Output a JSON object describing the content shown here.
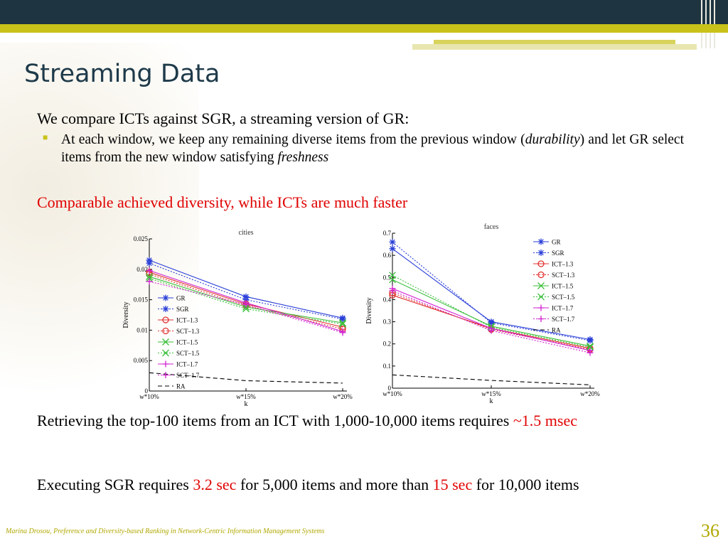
{
  "slide": {
    "title": "Streaming Data",
    "intro": "We compare ICTs against SGR, a streaming version of GR:",
    "bullet_part1": "At each window, we keep any remaining diverse items from the previous window (",
    "bullet_em1": "durability",
    "bullet_part2": ") and let GR select items from the new window satisfying ",
    "bullet_em2": "freshness",
    "highlight": "Comparable achieved diversity, while ICTs are much faster",
    "retrieve_text": "Retrieving the top-100 items from an ICT with 1,000-10,000 items requires ",
    "retrieve_value": "~1.5 msec",
    "exec_text1": "Executing SGR requires ",
    "exec_value1": "3.2 sec",
    "exec_text2": " for 5,000 items and more than ",
    "exec_value2": "15 sec",
    "exec_text3": " for 10,000 items",
    "footer": "Marina Drosou, Preference and Diversity-based Ranking in Network-Centric Information Management Systems",
    "page_number": "36"
  },
  "colors": {
    "blue": "#2a3fd8",
    "red": "#e03030",
    "green": "#3cbf3c",
    "magenta": "#d020d0",
    "black": "#000000",
    "accent_red": "#e00000"
  },
  "chart_data": [
    {
      "type": "line",
      "title": "cities",
      "xlabel": "k",
      "ylabel": "Diversity",
      "categories": [
        "w*10%",
        "w*15%",
        "w*20%"
      ],
      "ylim": [
        0,
        0.025
      ],
      "yticks": [
        "0",
        "0.005",
        "0.01",
        "0.015",
        "0.02",
        "0.025"
      ],
      "legend_position": "bottom-left",
      "series": [
        {
          "name": "GR",
          "values": [
            0.0215,
            0.0155,
            0.012
          ],
          "color": "#2a3fd8",
          "dash": "solid",
          "marker": "star"
        },
        {
          "name": "SGR",
          "values": [
            0.021,
            0.015,
            0.0118
          ],
          "color": "#2a3fd8",
          "dash": "dotted",
          "marker": "star"
        },
        {
          "name": "ICT–1.3",
          "values": [
            0.0195,
            0.0143,
            0.0105
          ],
          "color": "#e03030",
          "dash": "solid",
          "marker": "circle"
        },
        {
          "name": "SCT–1.3",
          "values": [
            0.0192,
            0.014,
            0.0102
          ],
          "color": "#e03030",
          "dash": "dotted",
          "marker": "circle"
        },
        {
          "name": "ICT–1.5",
          "values": [
            0.0188,
            0.0138,
            0.0112
          ],
          "color": "#3cbf3c",
          "dash": "solid",
          "marker": "x"
        },
        {
          "name": "SCT–1.5",
          "values": [
            0.0185,
            0.0135,
            0.011
          ],
          "color": "#3cbf3c",
          "dash": "dotted",
          "marker": "x"
        },
        {
          "name": "ICT–1.7",
          "values": [
            0.0198,
            0.0145,
            0.0098
          ],
          "color": "#d020d0",
          "dash": "solid",
          "marker": "plus"
        },
        {
          "name": "SCT–1.7",
          "values": [
            0.018,
            0.0142,
            0.0096
          ],
          "color": "#d020d0",
          "dash": "dotted",
          "marker": "plus"
        },
        {
          "name": "RA",
          "values": [
            0.003,
            0.0017,
            0.0013
          ],
          "color": "#000000",
          "dash": "dashed",
          "marker": "none"
        }
      ]
    },
    {
      "type": "line",
      "title": "faces",
      "xlabel": "k",
      "ylabel": "Diversity",
      "categories": [
        "w*10%",
        "w*15%",
        "w*20%"
      ],
      "ylim": [
        0,
        0.7
      ],
      "yticks": [
        "0",
        "0.1",
        "0.2",
        "0.3",
        "0.4",
        "0.5",
        "0.6",
        "0.7"
      ],
      "legend_position": "top-right",
      "series": [
        {
          "name": "GR",
          "values": [
            0.63,
            0.3,
            0.22
          ],
          "color": "#2a3fd8",
          "dash": "solid",
          "marker": "star"
        },
        {
          "name": "SGR",
          "values": [
            0.66,
            0.295,
            0.215
          ],
          "color": "#2a3fd8",
          "dash": "dotted",
          "marker": "star"
        },
        {
          "name": "ICT–1.3",
          "values": [
            0.42,
            0.27,
            0.18
          ],
          "color": "#e03030",
          "dash": "solid",
          "marker": "circle"
        },
        {
          "name": "SCT–1.3",
          "values": [
            0.43,
            0.265,
            0.175
          ],
          "color": "#e03030",
          "dash": "dotted",
          "marker": "circle"
        },
        {
          "name": "ICT–1.5",
          "values": [
            0.49,
            0.28,
            0.19
          ],
          "color": "#3cbf3c",
          "dash": "solid",
          "marker": "x"
        },
        {
          "name": "SCT–1.5",
          "values": [
            0.51,
            0.275,
            0.185
          ],
          "color": "#3cbf3c",
          "dash": "dotted",
          "marker": "x"
        },
        {
          "name": "ICT–1.7",
          "values": [
            0.45,
            0.27,
            0.17
          ],
          "color": "#d020d0",
          "dash": "solid",
          "marker": "plus"
        },
        {
          "name": "SCT–1.7",
          "values": [
            0.44,
            0.26,
            0.16
          ],
          "color": "#d020d0",
          "dash": "dotted",
          "marker": "plus"
        },
        {
          "name": "RA",
          "values": [
            0.06,
            0.035,
            0.015
          ],
          "color": "#000000",
          "dash": "dashed",
          "marker": "none"
        }
      ]
    }
  ]
}
